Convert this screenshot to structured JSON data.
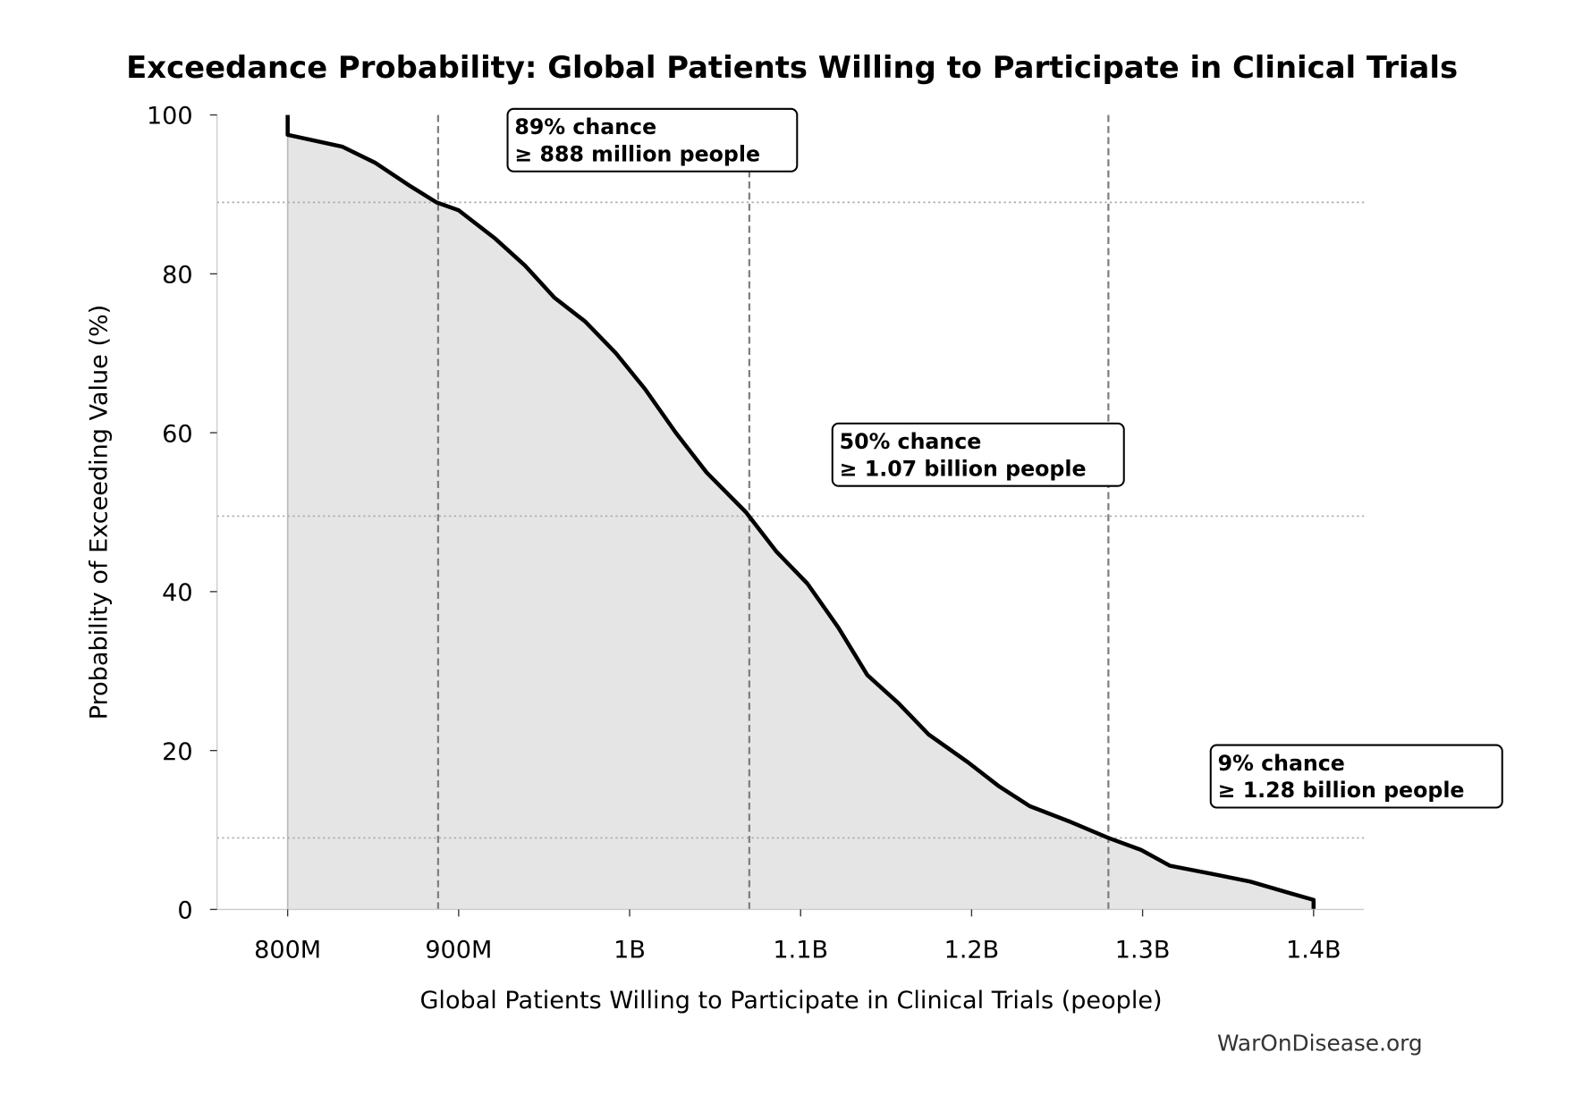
{
  "chart_data": {
    "type": "area",
    "title": "Exceedance Probability: Global Patients Willing to Participate in Clinical Trials",
    "xlabel": "Global Patients Willing to Participate in Clinical Trials (people)",
    "ylabel": "Probability of Exceeding Value (%)",
    "xlim": [
      760,
      1430
    ],
    "ylim": [
      0,
      100
    ],
    "x_unit": "million people",
    "xticks": [
      {
        "value": 800,
        "label": "800M"
      },
      {
        "value": 900,
        "label": "900M"
      },
      {
        "value": 1000,
        "label": "1B"
      },
      {
        "value": 1100,
        "label": "1.1B"
      },
      {
        "value": 1200,
        "label": "1.2B"
      },
      {
        "value": 1300,
        "label": "1.3B"
      },
      {
        "value": 1400,
        "label": "1.4B"
      }
    ],
    "yticks": [
      {
        "value": 0,
        "label": "0"
      },
      {
        "value": 20,
        "label": "20"
      },
      {
        "value": 40,
        "label": "40"
      },
      {
        "value": 60,
        "label": "60"
      },
      {
        "value": 80,
        "label": "80"
      },
      {
        "value": 100,
        "label": "100"
      }
    ],
    "series": [
      {
        "x": [
          800,
          800,
          832,
          851,
          872,
          887,
          900,
          921,
          939,
          956,
          974,
          992,
          1009,
          1027,
          1045,
          1068,
          1086,
          1104,
          1122,
          1139,
          1157,
          1175,
          1198,
          1216,
          1234,
          1258,
          1280,
          1299,
          1316,
          1340,
          1363,
          1387,
          1400,
          1400
        ],
        "y": [
          100,
          97.5,
          96,
          94,
          91,
          89,
          88,
          84.5,
          81,
          77,
          74,
          70,
          65.5,
          60,
          55,
          50,
          45,
          41,
          35.5,
          29.5,
          26,
          22,
          18.5,
          15.5,
          13,
          11,
          9,
          7.5,
          5.5,
          4.5,
          3.5,
          2,
          1.2,
          0
        ]
      }
    ],
    "reference_lines": {
      "vertical": [
        888,
        1070,
        1280
      ],
      "horizontal": [
        89,
        49.5,
        9
      ]
    },
    "annotations": [
      {
        "line1": "89% chance",
        "line2": "≥ 888 million people"
      },
      {
        "line1": "50% chance",
        "line2": "≥ 1.07 billion people"
      },
      {
        "line1": "9% chance",
        "line2": "≥ 1.28 billion people"
      }
    ],
    "grid": false,
    "colors": {
      "line": "#000000",
      "fill": "#e5e5e5",
      "reference": "#808080"
    }
  },
  "watermark": "WarOnDisease.org"
}
